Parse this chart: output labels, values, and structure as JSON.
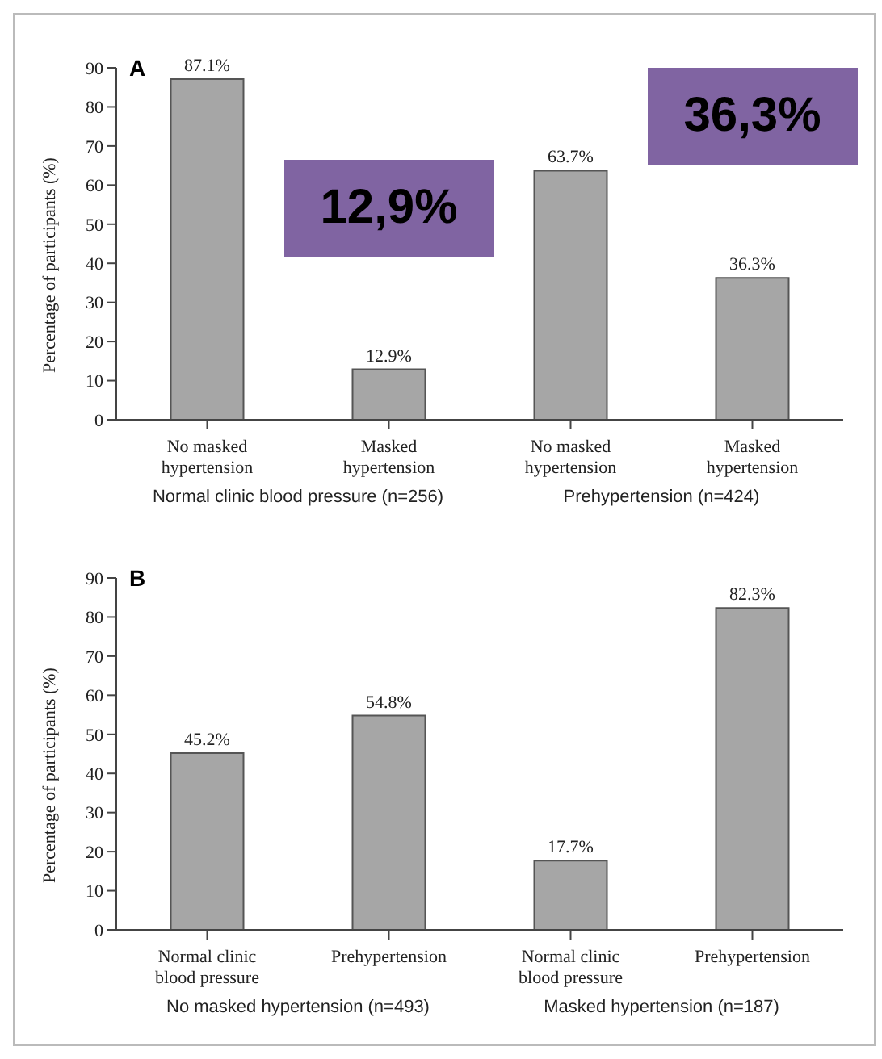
{
  "chart_data": [
    {
      "type": "bar",
      "title": "A",
      "ylabel": "Percentage of participants (%)",
      "categories": [
        "No masked hypertension",
        "Masked hypertension",
        "No masked hypertension",
        "Masked hypertension"
      ],
      "values": [
        87.1,
        12.9,
        63.7,
        36.3
      ],
      "value_labels": [
        "87.1%",
        "12.9%",
        "63.7%",
        "36.3%"
      ],
      "color": "#a6a6a6",
      "ylim": [
        0,
        90
      ],
      "yticks": [
        0,
        10,
        20,
        30,
        40,
        50,
        60,
        70,
        80,
        90
      ],
      "annotations": [
        "12,9%",
        "36,3%",
        "Normal clinic blood pressure (n=256)",
        "Prehypertension (n=424)"
      ]
    },
    {
      "type": "bar",
      "title": "B",
      "ylabel": "Percentage of participants (%)",
      "categories": [
        "Normal clinic blood pressure",
        "Prehypertension",
        "Normal clinic blood pressure",
        "Prehypertension"
      ],
      "values": [
        45.2,
        54.8,
        17.7,
        82.3
      ],
      "value_labels": [
        "45.2%",
        "54.8%",
        "17.7%",
        "82.3%"
      ],
      "color": "#a6a6a6",
      "ylim": [
        0,
        90
      ],
      "yticks": [
        0,
        10,
        20,
        30,
        40,
        50,
        60,
        70,
        80,
        90
      ],
      "annotations": [
        "No masked hypertension (n=493)",
        "Masked hypertension (n=187)"
      ]
    }
  ]
}
